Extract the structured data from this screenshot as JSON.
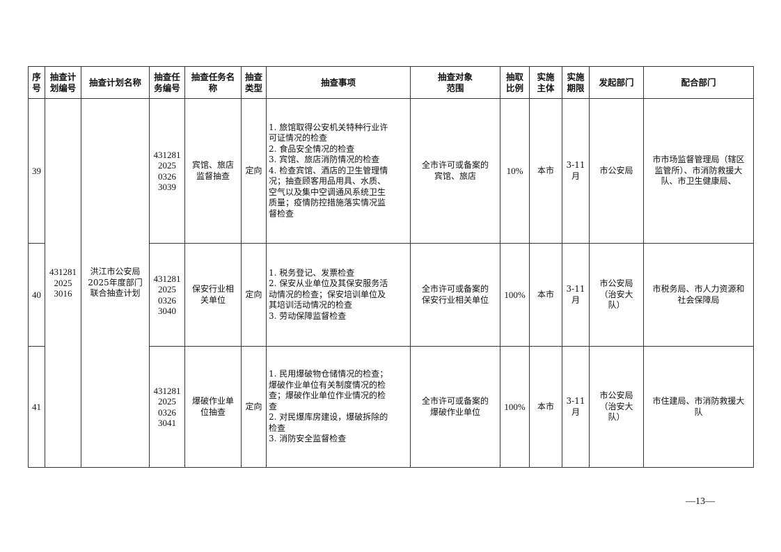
{
  "headers": [
    "序\n号",
    "抽查计\n划编号",
    "抽查计划名称",
    "抽查任\n务编号",
    "抽查任务名\n称",
    "抽查\n类型",
    "抽查事项",
    "抽查对象\n范围",
    "抽取\n比例",
    "实施\n主体",
    "实施\n期限",
    "发起部门",
    "配合部门"
  ],
  "plan": {
    "id": "431281\n2025\n3016",
    "name": "洪江市公安局\n2025年度部门\n联合抽查计划"
  },
  "rows": [
    {
      "no": "39",
      "task_id": "431281\n2025\n0326\n3039",
      "task_name": "宾馆、旅店\n监督抽查",
      "type": "定向",
      "items": "1. 旅馆取得公安机关特种行业许\n可证情况的检查\n2. 食品安全情况的检查\n3. 宾馆、旅店消防情况的检查\n4. 检查宾馆、酒店的卫生管理情\n况；抽查顾客用品用具、水质、\n空气以及集中空调通风系统卫生\n质量；疫情防控措施落实情况监\n督检查",
      "scope": "全市许可或备案的\n宾馆、旅店",
      "ratio": "10%",
      "subject": "本市",
      "period": "3-11\n月",
      "initiator": "市公安局",
      "partners": "市市场监督管理局（辖区\n监管所）、市消防救援大\n队、市卫生健康局、"
    },
    {
      "no": "40",
      "task_id": "431281\n2025\n0326\n3040",
      "task_name": "保安行业相\n关单位",
      "type": "定向",
      "items": "1. 税务登记、发票检查\n2. 保安从业单位及其保安服务活\n动情况的检查；保安培训单位及\n其培训活动情况的检查\n3. 劳动保障监督检查",
      "scope": "全市许可或备案的\n保安行业相关单位",
      "ratio": "100%",
      "subject": "本市",
      "period": "3-11\n月",
      "initiator": "市公安局\n（治安大\n队）",
      "partners": "市税务局、市人力资源和\n社会保障局"
    },
    {
      "no": "41",
      "task_id": "431281\n2025\n0326\n3041",
      "task_name": "爆破作业单\n位抽查",
      "type": "定向",
      "items": "1. 民用爆破物仓储情况的检查；\n爆破作业单位有关制度情况的检\n查；爆破作业单位作业情况的检\n查\n2. 对民爆库房建设，爆破拆除的\n检查\n3. 消防安全监督检查",
      "scope": "全市许可或备案的\n爆破作业单位",
      "ratio": "100%",
      "subject": "本市",
      "period": "3-11\n月",
      "initiator": "市公安局\n（治安大\n队）",
      "partners": "市住建局、市消防救援大\n队"
    }
  ],
  "page_number": "—13—"
}
